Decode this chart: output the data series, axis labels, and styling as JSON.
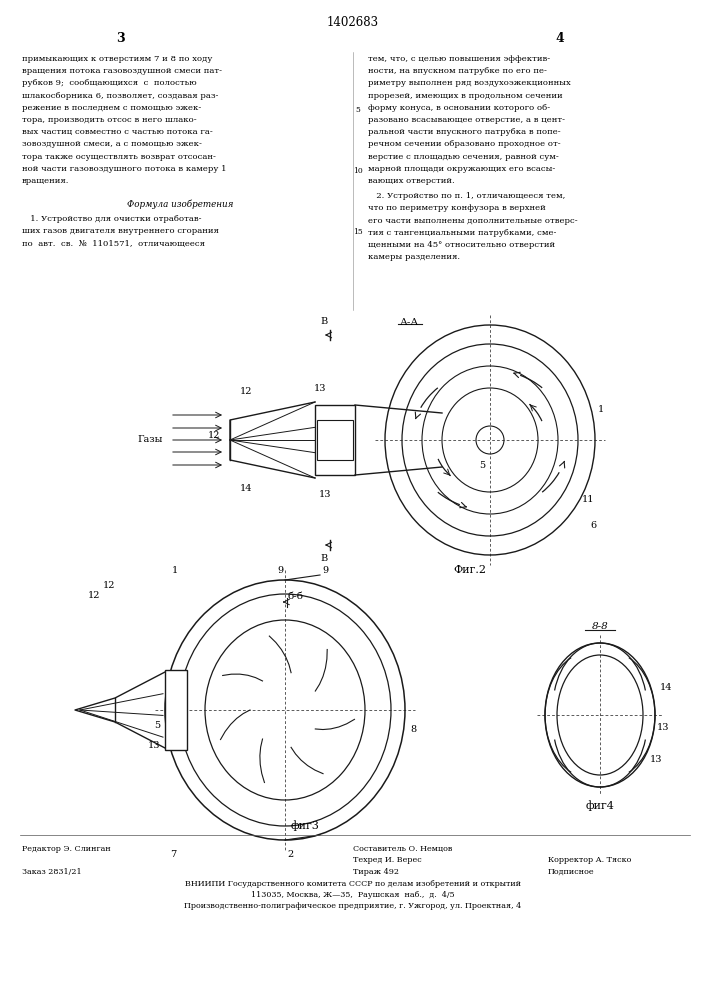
{
  "patent_number": "1402683",
  "col_left": "3",
  "col_right": "4",
  "text_left": [
    "примыкающих к отверстиям 7 и 8 по ходу",
    "вращения потока газовоздушной смеси пат-",
    "рубков 9;  сообщающихся  с  полостью",
    "шлакосборника 6, позволяет, создавая раз-",
    "режение в последнем с помощью эжек-",
    "тора, производить отсос в него шлако-",
    "вых частиц совместно с частью потока га-",
    "зовоздушной смеси, а с помощью эжек-",
    "тора также осуществлять возврат отсосан-",
    "ной части газовоздушного потока в камеру 1",
    "вращения."
  ],
  "formula_header": "Формула изобретения",
  "formula_text": [
    "   1. Устройство для очистки отработав-",
    "ших газов двигателя внутреннего сгорания",
    "по  авт.  св.  №  1101571,  отличающееся"
  ],
  "text_right": [
    "тем, что, с целью повышения эффектив-",
    "ности, на впускном патрубке по его пе-",
    "риметру выполнен ряд воздухоэжекционных",
    "прорезей, имеющих в продольном сечении",
    "форму конуса, в основании которого об-",
    "разовано всасывающее отверстие, а в цент-",
    "ральной части впускного патрубка в попе-",
    "речном сечении образовано проходное от-",
    "верстие с площадью сечения, равной сум-",
    "марной площади окружающих его всасы-",
    "вающих отверстий."
  ],
  "text_right2": [
    "   2. Устройство по п. 1, отличающееся тем,",
    "что по периметру конфузора в верхней",
    "его части выполнены дополнительные отверс-",
    "тия с тангенциальными патрубками, сме-",
    "щенными на 45° относительно отверстий",
    "камеры разделения."
  ],
  "bg_color": "#ffffff",
  "text_color": "#000000",
  "line_color": "#1a1a1a"
}
